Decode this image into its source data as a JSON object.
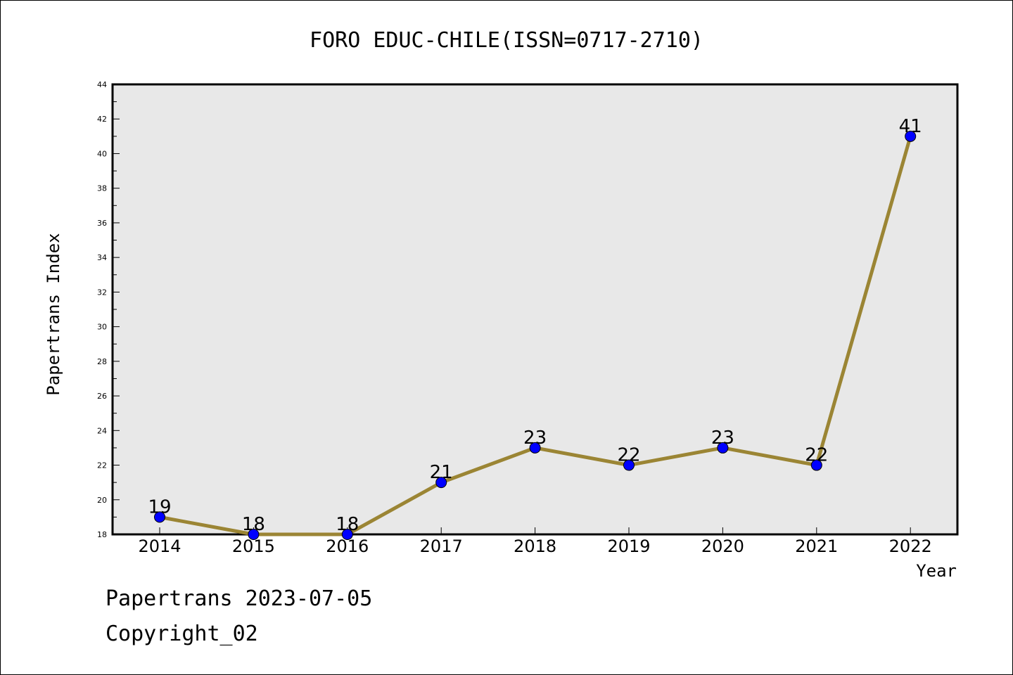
{
  "chart_data": {
    "type": "line",
    "title": "FORO EDUC-CHILE(ISSN=0717-2710)",
    "xlabel": "Year",
    "ylabel": "Papertrans Index",
    "x": [
      "2014",
      "2015",
      "2016",
      "2017",
      "2018",
      "2019",
      "2020",
      "2021",
      "2022"
    ],
    "values": [
      19,
      18,
      18,
      21,
      23,
      22,
      23,
      22,
      41
    ],
    "ylim": [
      18,
      44
    ],
    "yticks": [
      18,
      20,
      22,
      24,
      26,
      28,
      30,
      32,
      34,
      36,
      38,
      40,
      42,
      44
    ],
    "grid": false,
    "legend": "none",
    "colors": {
      "line": "#9b8534",
      "marker": "#0000ff",
      "plot_bg": "#e8e8e8"
    }
  },
  "footer": {
    "line1": "Papertrans 2023-07-05",
    "line2": "Copyright_02"
  }
}
